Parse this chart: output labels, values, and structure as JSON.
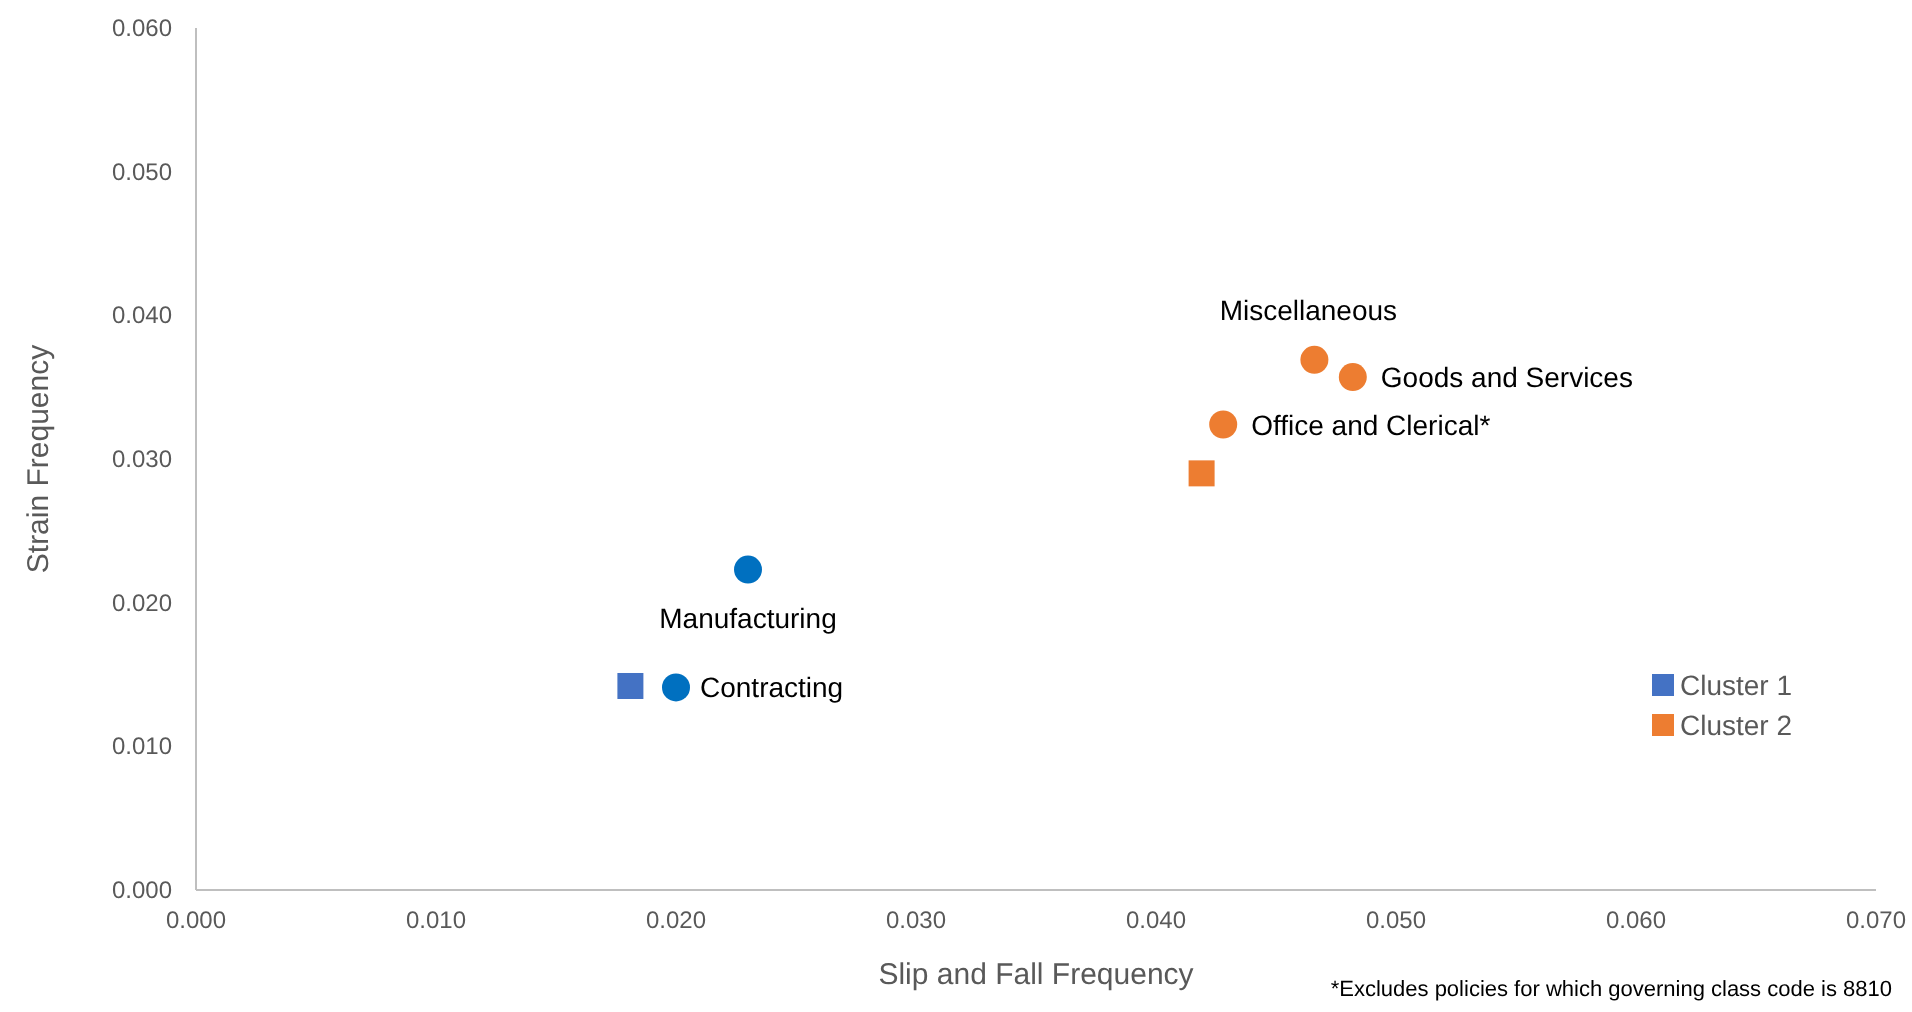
{
  "chart_data": {
    "type": "scatter",
    "xlabel": "Slip and Fall Frequency",
    "ylabel": "Strain Frequency",
    "xlim": [
      0,
      0.07
    ],
    "xticks": [
      {
        "value": 0,
        "label": "0.000"
      },
      {
        "value": 0.01,
        "label": "0.010"
      },
      {
        "value": 0.02,
        "label": "0.020"
      },
      {
        "value": 0.03,
        "label": "0.030"
      },
      {
        "value": 0.04,
        "label": "0.040"
      },
      {
        "value": 0.05,
        "label": "0.050"
      },
      {
        "value": 0.06,
        "label": "0.060"
      },
      {
        "value": 0.07,
        "label": "0.070"
      }
    ],
    "ylim": [
      0,
      0.06
    ],
    "yticks": [
      {
        "value": 0,
        "label": "0.000"
      },
      {
        "value": 0.01,
        "label": "0.010"
      },
      {
        "value": 0.02,
        "label": "0.020"
      },
      {
        "value": 0.03,
        "label": "0.030"
      },
      {
        "value": 0.04,
        "label": "0.040"
      },
      {
        "value": 0.05,
        "label": "0.050"
      },
      {
        "value": 0.06,
        "label": "0.060"
      }
    ],
    "grid": false,
    "legend": "right",
    "series": [
      {
        "name": "Cluster 1",
        "color": "#4472c4",
        "marker": "square",
        "x": [
          0.0181
        ],
        "values": [
          0.0142
        ]
      },
      {
        "name": "Cluster 2",
        "color": "#ed7d31",
        "marker": "square",
        "x": [
          0.0419
        ],
        "values": [
          0.029
        ]
      },
      {
        "color": "#0070c0",
        "marker": "circle",
        "x": [
          0.02,
          0.023
        ],
        "values": [
          0.0141,
          0.0223
        ]
      },
      {
        "color": "#ed7d31",
        "marker": "circle",
        "x": [
          0.0428,
          0.0466,
          0.0482
        ],
        "values": [
          0.0324,
          0.0369,
          0.0357
        ]
      }
    ],
    "annotations": [
      {
        "text": "Contracting",
        "x": 0.02,
        "y": 0.0141
      },
      {
        "text": "Manufacturing",
        "x": 0.023,
        "y": 0.0223
      },
      {
        "text": "Office and Clerical*",
        "x": 0.0428,
        "y": 0.0324
      },
      {
        "text": "Miscellaneous",
        "x": 0.0466,
        "y": 0.0369
      },
      {
        "text": "Goods and Services",
        "x": 0.0482,
        "y": 0.0357
      },
      "*Excludes policies for which governing class code is 8810"
    ]
  }
}
